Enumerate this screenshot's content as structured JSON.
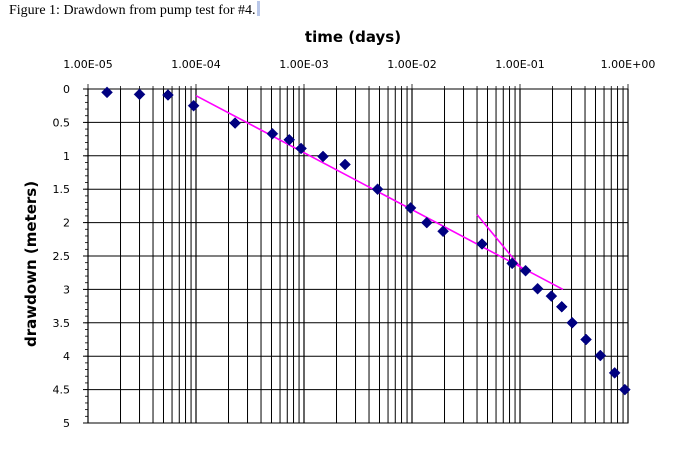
{
  "caption": "Figure 1: Drawdown from pump test for #4.",
  "chart_data": {
    "type": "scatter",
    "title": "",
    "xlabel": "time (days)",
    "ylabel": "drawdown (meters)",
    "xscale": "log",
    "xlim": [
      1e-05,
      1
    ],
    "ylim": [
      0,
      5
    ],
    "y_inverted": true,
    "x_tick_labels": [
      "1.00E-05",
      "1.00E-04",
      "1.00E-03",
      "1.00E-02",
      "1.00E-01",
      "1.00E+00"
    ],
    "x_tick_values": [
      1e-05,
      0.0001,
      0.001,
      0.01,
      0.1,
      1
    ],
    "y_tick_labels": [
      "0",
      "0.5",
      "1",
      "1.5",
      "2",
      "2.5",
      "3",
      "3.5",
      "4",
      "4.5",
      "5"
    ],
    "y_tick_values": [
      0,
      0.5,
      1,
      1.5,
      2,
      2.5,
      3,
      3.5,
      4,
      4.5,
      5
    ],
    "grid": true,
    "x_axis_position": "top",
    "series": [
      {
        "marker": "diamond",
        "color": "#000080",
        "x": [
          1.5e-05,
          3e-05,
          5.5e-05,
          9.5e-05,
          0.00023,
          0.00051,
          0.00073,
          0.00094,
          0.0015,
          0.0024,
          0.0048,
          0.0097,
          0.0137,
          0.0194,
          0.0445,
          0.0846,
          0.1126,
          0.1455,
          0.1952,
          0.2436,
          0.3043,
          0.4091,
          0.5543,
          0.7525,
          0.9347
        ],
        "y": [
          0.05,
          0.08,
          0.09,
          0.25,
          0.51,
          0.67,
          0.76,
          0.89,
          1.01,
          1.13,
          1.5,
          1.78,
          2.0,
          2.13,
          2.32,
          2.61,
          2.72,
          2.99,
          3.1,
          3.26,
          3.5,
          3.75,
          3.99,
          4.25,
          4.5
        ]
      }
    ],
    "fit_lines": [
      {
        "color": "#ff00ff",
        "x": [
          0.0001,
          0.25
        ],
        "y": [
          0.1,
          3.0
        ]
      },
      {
        "color": "#ff00ff",
        "x": [
          0.04,
          0.105
        ],
        "y": [
          1.88,
          2.7
        ]
      }
    ]
  }
}
